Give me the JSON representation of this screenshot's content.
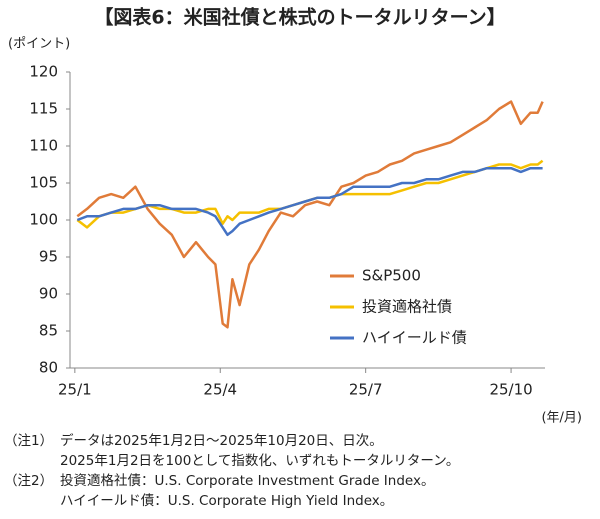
{
  "chart_data": {
    "type": "line",
    "title": "【図表6：米国社債と株式のトータルリターン】",
    "y_label": "(ポイント)",
    "x_label": "(年/月)",
    "x": [
      1.05,
      1.25,
      1.5,
      1.75,
      2.0,
      2.25,
      2.5,
      2.75,
      3.0,
      3.25,
      3.5,
      3.75,
      3.9,
      4.05,
      4.15,
      4.25,
      4.4,
      4.6,
      4.8,
      5.0,
      5.25,
      5.5,
      5.75,
      6.0,
      6.25,
      6.5,
      6.75,
      7.0,
      7.25,
      7.5,
      7.75,
      8.0,
      8.25,
      8.5,
      8.75,
      9.0,
      9.25,
      9.5,
      9.75,
      10.0,
      10.2,
      10.4,
      10.55,
      10.65
    ],
    "series": [
      {
        "name": "S&P500",
        "color": "#e07b39",
        "values": [
          100.5,
          101.5,
          103,
          103.5,
          103,
          104.5,
          101.5,
          99.5,
          98,
          95,
          97,
          95,
          94,
          86,
          85.5,
          92,
          88.5,
          94,
          96,
          98.5,
          101,
          100.5,
          102,
          102.5,
          102,
          104.5,
          105,
          106,
          106.5,
          107.5,
          108,
          109,
          109.5,
          110,
          110.5,
          111.5,
          112.5,
          113.5,
          115,
          116,
          113,
          114.5,
          114.5,
          116
        ]
      },
      {
        "name": "投資適格社債",
        "color": "#f5c000",
        "values": [
          100,
          99,
          100.5,
          101,
          101,
          101.5,
          102,
          101.5,
          101.5,
          101,
          101,
          101.5,
          101.5,
          99.5,
          100.5,
          100,
          101,
          101,
          101,
          101.5,
          101.5,
          102,
          102.5,
          103,
          103,
          103.5,
          103.5,
          103.5,
          103.5,
          103.5,
          104,
          104.5,
          105,
          105,
          105.5,
          106,
          106.5,
          107,
          107.5,
          107.5,
          107,
          107.5,
          107.5,
          108
        ]
      },
      {
        "name": "ハイイールド債",
        "color": "#4472c4",
        "values": [
          100,
          100.5,
          100.5,
          101,
          101.5,
          101.5,
          102,
          102,
          101.5,
          101.5,
          101.5,
          101,
          100.5,
          99,
          98,
          98.5,
          99.5,
          100,
          100.5,
          101,
          101.5,
          102,
          102.5,
          103,
          103,
          103.5,
          104.5,
          104.5,
          104.5,
          104.5,
          105,
          105,
          105.5,
          105.5,
          106,
          106.5,
          106.5,
          107,
          107,
          107,
          106.5,
          107,
          107,
          107
        ]
      }
    ],
    "xlim": [
      0.9,
      10.7
    ],
    "xticks": [
      {
        "value": 1,
        "label": "25/1"
      },
      {
        "value": 4,
        "label": "25/4"
      },
      {
        "value": 7,
        "label": "25/7"
      },
      {
        "value": 10,
        "label": "25/10"
      }
    ],
    "ylim": [
      80,
      120
    ],
    "yticks": [
      80,
      85,
      90,
      95,
      100,
      105,
      110,
      115,
      120
    ],
    "grid": false,
    "legend": "lower-right"
  },
  "notes": [
    {
      "label": "（注1）",
      "lines": [
        "データは2025年1月2日～2025年10月20日、日次。",
        "2025年1月2日を100として指数化、いずれもトータルリターン。"
      ]
    },
    {
      "label": "（注2）",
      "lines": [
        "投資適格社債：U.S. Corporate Investment Grade Index。",
        "ハイイールド債：U.S. Corporate High Yield Index。"
      ]
    }
  ]
}
